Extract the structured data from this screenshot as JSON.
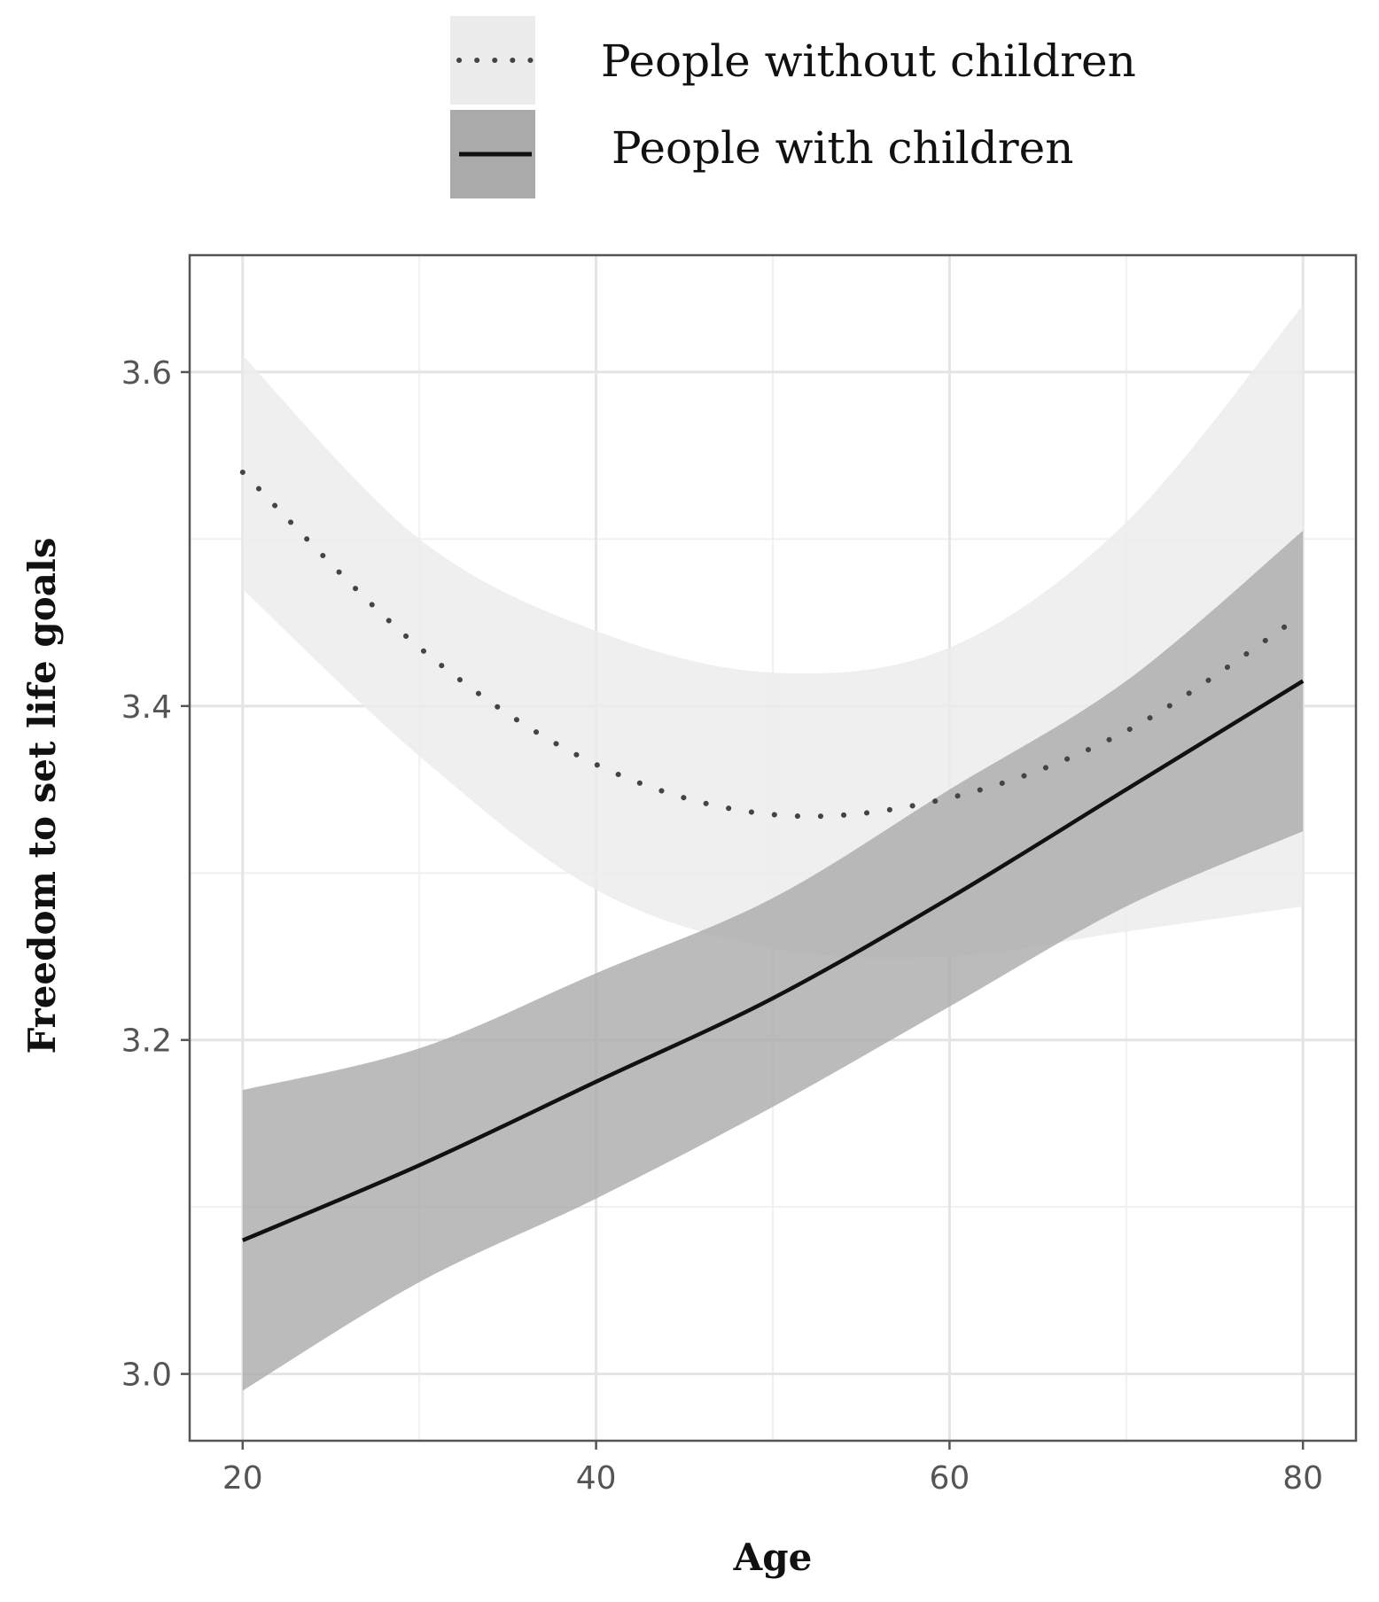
{
  "chart_data": {
    "type": "line",
    "title": "",
    "xlabel": "Age",
    "ylabel": "Freedom to set life goals",
    "xlim": [
      17,
      83
    ],
    "ylim": [
      2.96,
      3.67
    ],
    "x_ticks": [
      20,
      40,
      60,
      80
    ],
    "x_tick_labels": [
      "20",
      "40",
      "60",
      "80"
    ],
    "x_minor_ticks": [
      30,
      50,
      70
    ],
    "y_ticks": [
      3.0,
      3.2,
      3.4,
      3.6
    ],
    "y_tick_labels": [
      "3.0",
      "3.2",
      "3.4",
      "3.6"
    ],
    "y_minor_ticks": [
      3.1,
      3.3,
      3.5
    ],
    "grid": true,
    "legend_position": "top",
    "series": [
      {
        "name": "People without children",
        "line_style": "dotted",
        "line_color": "#444444",
        "band_color": "#ececec",
        "x": [
          20,
          30,
          40,
          50,
          60,
          70,
          80
        ],
        "y": [
          3.54,
          3.435,
          3.365,
          3.335,
          3.345,
          3.385,
          3.455
        ],
        "ci_lower": [
          3.47,
          3.37,
          3.29,
          3.255,
          3.25,
          3.265,
          3.28
        ],
        "ci_upper": [
          3.61,
          3.5,
          3.445,
          3.42,
          3.435,
          3.51,
          3.64
        ]
      },
      {
        "name": "People with children",
        "line_style": "solid",
        "line_color": "#111111",
        "band_color": "#aaaaaa",
        "x": [
          20,
          30,
          40,
          50,
          60,
          70,
          80
        ],
        "y": [
          3.08,
          3.125,
          3.175,
          3.225,
          3.285,
          3.35,
          3.415
        ],
        "ci_lower": [
          2.99,
          3.055,
          3.105,
          3.16,
          3.22,
          3.28,
          3.325
        ],
        "ci_upper": [
          3.17,
          3.195,
          3.24,
          3.285,
          3.35,
          3.415,
          3.505
        ]
      }
    ]
  }
}
